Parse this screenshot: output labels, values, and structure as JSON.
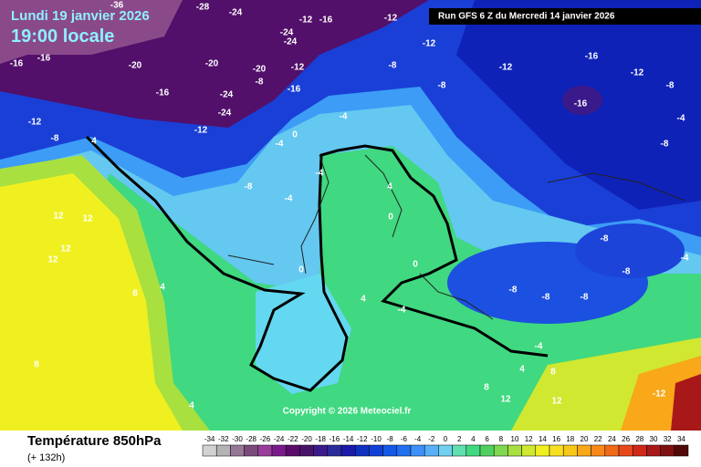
{
  "header": {
    "date": "Lundi 19 janvier 2026",
    "time": "19:00 locale",
    "run": "Run GFS 6 Z du Mercredi 14 janvier 2026"
  },
  "legend": {
    "title": "Température 850hPa",
    "lead": "(+ 132h)",
    "ticks": [
      -34,
      -32,
      -30,
      -28,
      -26,
      -24,
      -22,
      -20,
      -18,
      -16,
      -14,
      -12,
      -10,
      -8,
      -6,
      -4,
      -2,
      0,
      2,
      4,
      6,
      8,
      10,
      12,
      14,
      16,
      18,
      20,
      22,
      24,
      26,
      28,
      30,
      32,
      34
    ],
    "colors": [
      "#d2d2d2",
      "#b4b4b4",
      "#967896",
      "#7a4a7a",
      "#9a3c9a",
      "#7a1a8a",
      "#5a0a6a",
      "#48126a",
      "#3a1a8a",
      "#2a2a9a",
      "#1a1aaa",
      "#1030c0",
      "#1040d8",
      "#1458e8",
      "#2070f0",
      "#3c90f8",
      "#58b0f8",
      "#70d0f0",
      "#60e0b0",
      "#40d880",
      "#50d060",
      "#80d850",
      "#a8e040",
      "#d0e830",
      "#f0f020",
      "#f8e020",
      "#f8c818",
      "#f8a818",
      "#f88818",
      "#f06818",
      "#e84818",
      "#d02818",
      "#a81818",
      "#801010",
      "#500808"
    ]
  },
  "copyright": "Copyright © 2026 Meteociel.fr",
  "map_labels": [
    -36,
    -28,
    -24,
    -12,
    -16,
    -12,
    -12,
    -24,
    -24,
    -20,
    -20,
    -16,
    -16,
    -20,
    -12,
    -8,
    -16,
    -16,
    -24,
    -24,
    -12,
    -12,
    -8,
    -4,
    0,
    4,
    -4,
    -8,
    -8,
    -12,
    -16,
    -12,
    -16,
    -8,
    -4,
    -8,
    -8,
    -4,
    -4,
    12,
    12,
    12,
    12,
    8,
    4,
    8,
    4,
    0,
    4,
    -4,
    -8,
    -8,
    -8,
    -8,
    -8,
    -4,
    4,
    8,
    12,
    12,
    -12,
    8,
    -4,
    0,
    4,
    0
  ]
}
